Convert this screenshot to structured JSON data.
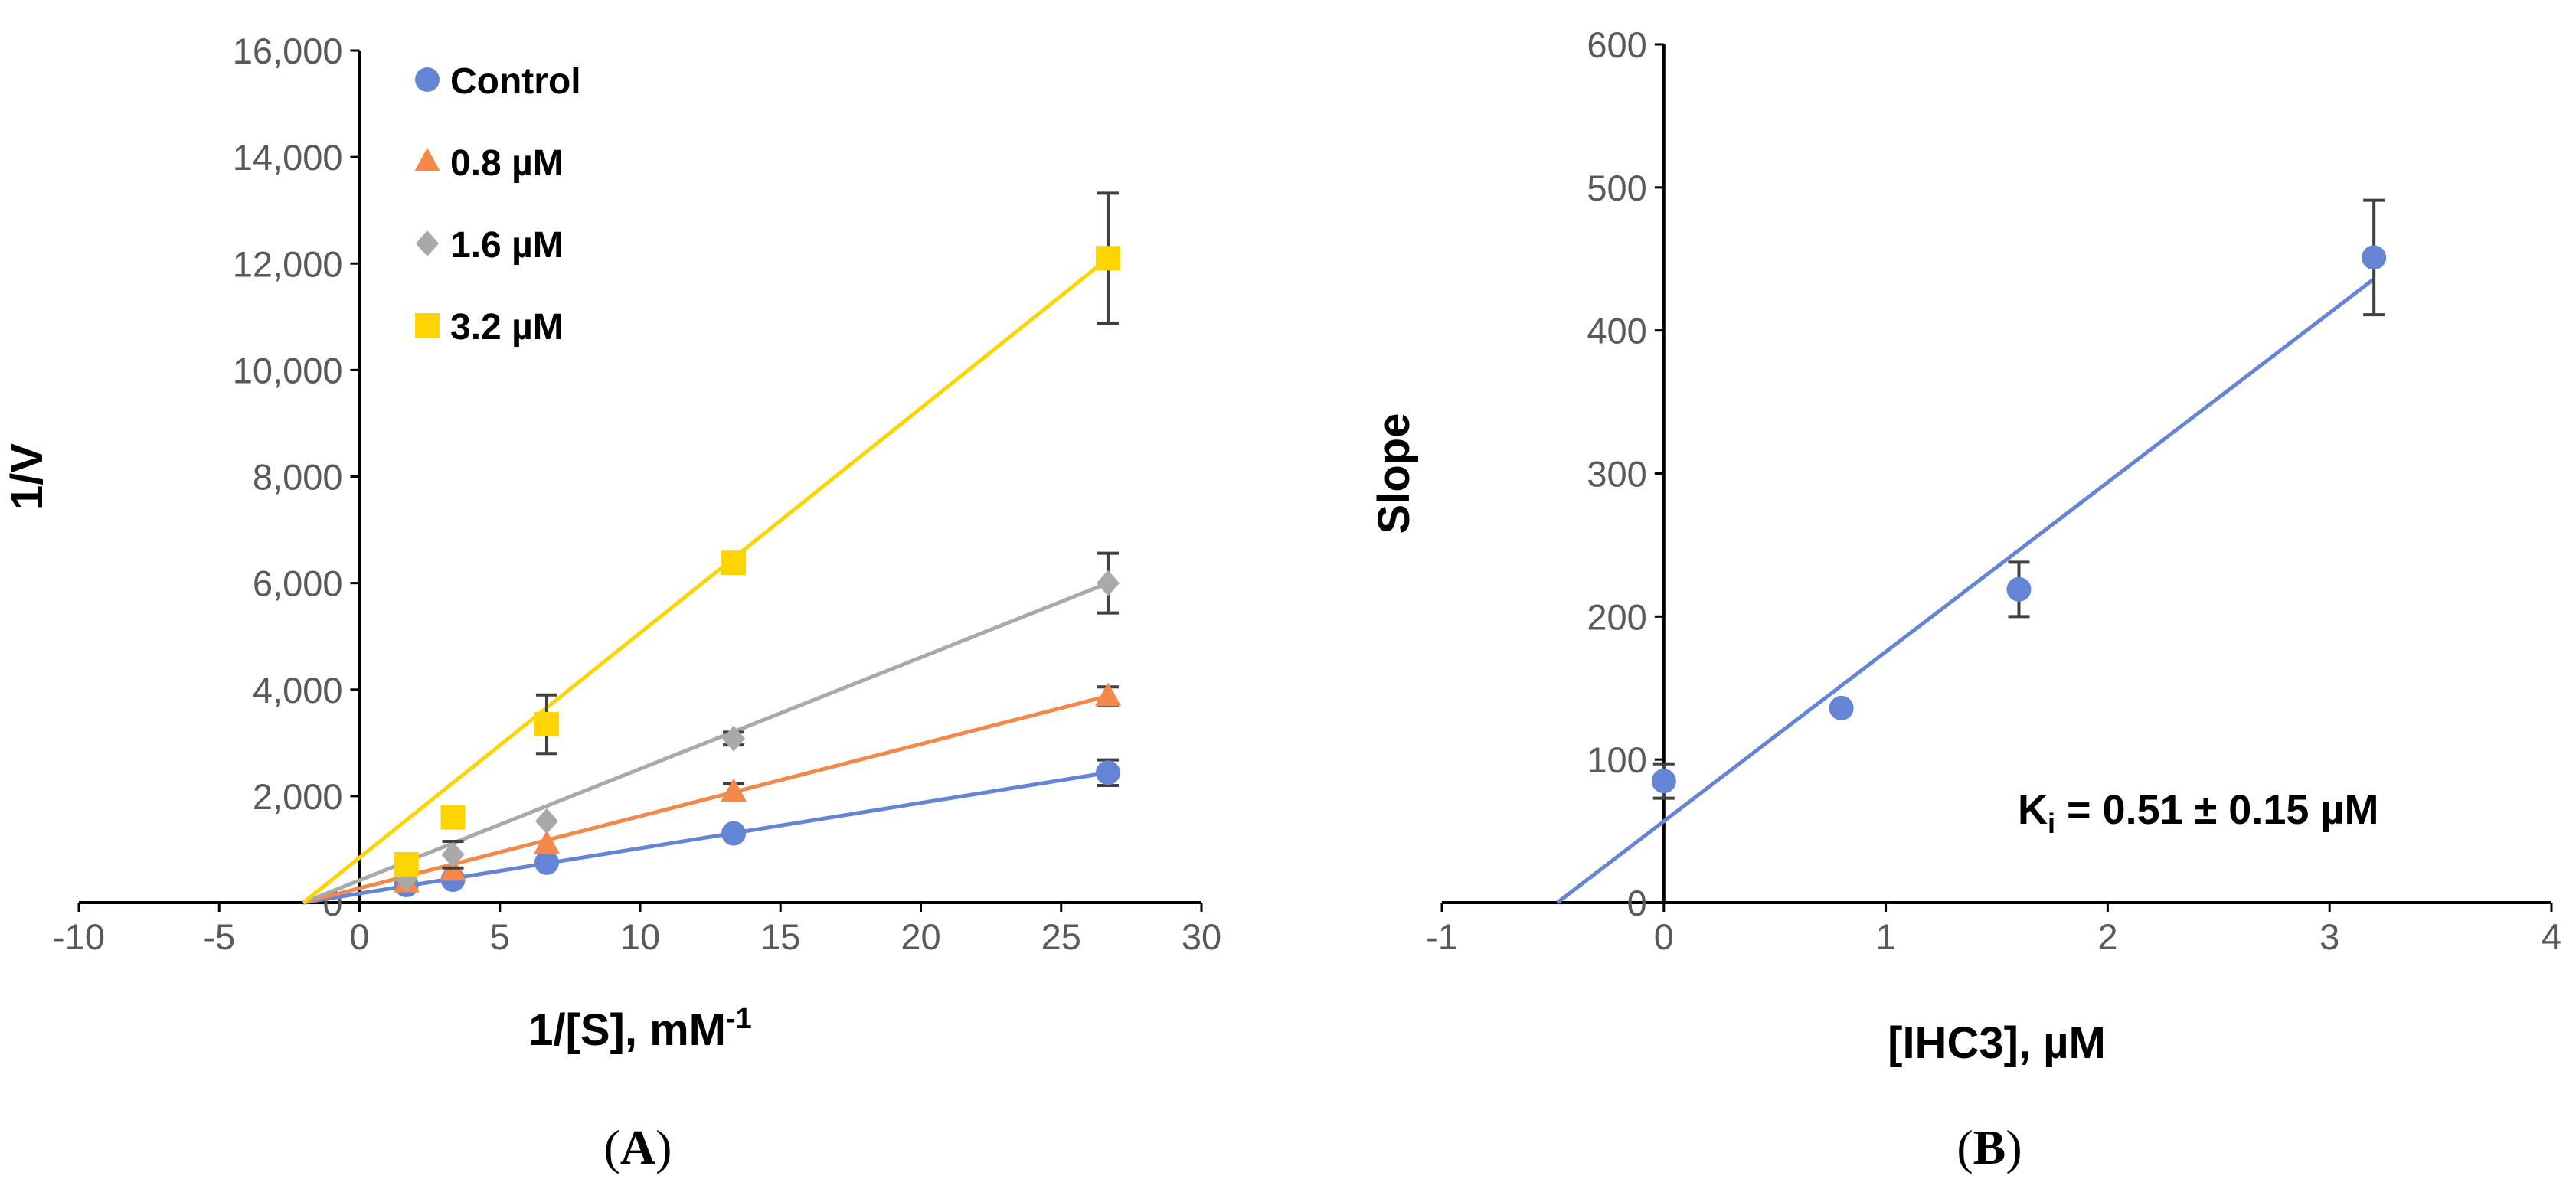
{
  "chart_data": [
    {
      "type": "line",
      "panel_label_open": "(",
      "panel_label": "A",
      "panel_label_close": ")",
      "xlabel": "1/[S], mM",
      "xlabel_sup": "-1",
      "ylabel": "1/V",
      "xlim": [
        -10,
        30
      ],
      "ylim": [
        0,
        16000
      ],
      "x_ticks": [
        -10,
        -5,
        0,
        5,
        10,
        15,
        20,
        25,
        30
      ],
      "x_tick_labels": [
        "-10",
        "-5",
        "0",
        "5",
        "10",
        "15",
        "20",
        "25",
        "30"
      ],
      "y_ticks": [
        0,
        2000,
        4000,
        6000,
        8000,
        10000,
        12000,
        14000,
        16000
      ],
      "y_tick_labels": [
        "0",
        "2,000",
        "4,000",
        "6,000",
        "8,000",
        "10,000",
        "12,000",
        "14,000",
        "16,000"
      ],
      "grid": false,
      "legend_position": "top-left",
      "series": [
        {
          "name": "Control",
          "color": "#6485D6",
          "marker": "circle",
          "x": [
            1.67,
            3.33,
            6.67,
            13.33,
            26.67
          ],
          "y": [
            330,
            430,
            750,
            1300,
            2440
          ],
          "errors": [
            0,
            0,
            0,
            0,
            240
          ],
          "fit": [
            [
              -2,
              0
            ],
            [
              26.67,
              2440
            ]
          ]
        },
        {
          "name": "0.8 µM",
          "color": "#F4874A",
          "marker": "triangle",
          "x": [
            1.67,
            3.33,
            6.67,
            13.33,
            26.67
          ],
          "y": [
            380,
            600,
            1100,
            2080,
            3880
          ],
          "errors": [
            0,
            0,
            0,
            150,
            170
          ],
          "fit": [
            [
              -2,
              0
            ],
            [
              26.67,
              3880
            ]
          ]
        },
        {
          "name": "1.6 µM",
          "color": "#A9A9A9",
          "marker": "diamond",
          "x": [
            1.67,
            3.33,
            6.67,
            13.33,
            26.67
          ],
          "y": [
            450,
            900,
            1530,
            3080,
            6000
          ],
          "errors": [
            0,
            250,
            0,
            120,
            560
          ],
          "fit": [
            [
              -2,
              0
            ],
            [
              26.67,
              6000
            ]
          ]
        },
        {
          "name": "3.2 µM",
          "color": "#FFD400",
          "marker": "square",
          "x": [
            1.67,
            3.33,
            6.67,
            13.33,
            26.67
          ],
          "y": [
            720,
            1600,
            3350,
            6380,
            12100
          ],
          "errors": [
            0,
            0,
            550,
            0,
            1220
          ],
          "fit": [
            [
              -2,
              0
            ],
            [
              26.67,
              12100
            ]
          ]
        }
      ]
    },
    {
      "type": "scatter",
      "panel_label_open": "(",
      "panel_label": "B",
      "panel_label_close": ")",
      "xlabel": "[IHC3], µM",
      "ylabel": "Slope",
      "xlim": [
        -1,
        4
      ],
      "ylim": [
        0,
        600
      ],
      "x_ticks": [
        -1,
        0,
        1,
        2,
        3,
        4
      ],
      "x_tick_labels": [
        "-1",
        "0",
        "1",
        "2",
        "3",
        "4"
      ],
      "y_ticks": [
        0,
        100,
        200,
        300,
        400,
        500,
        600
      ],
      "y_tick_labels": [
        "0",
        "100",
        "200",
        "300",
        "400",
        "500",
        "600"
      ],
      "grid": false,
      "annotation_prefix": "K",
      "annotation_sub": "i",
      "annotation_rest": " = 0.51 ± 0.15 µM",
      "series": [
        {
          "name": "Slope",
          "color": "#6485D6",
          "marker": "circle",
          "x": [
            0,
            0.8,
            1.6,
            3.2
          ],
          "y": [
            85,
            136,
            219,
            451
          ],
          "errors": [
            12,
            0,
            19,
            40
          ],
          "fit": [
            [
              -0.48,
              0
            ],
            [
              3.2,
              436
            ]
          ]
        }
      ]
    }
  ]
}
